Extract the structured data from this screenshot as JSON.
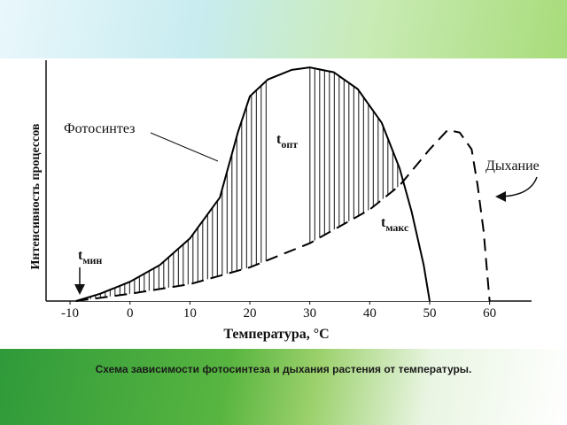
{
  "chart_data": {
    "type": "line",
    "caption": "Схема зависимости фотосинтеза и дыхания растения от температуры.",
    "x_label": "Температура, °С",
    "y_label": "Интенсивность процессов",
    "xlim": [
      -14,
      67
    ],
    "xticks": [
      -10,
      0,
      10,
      20,
      30,
      40,
      50,
      60
    ],
    "ylim": [
      0,
      100
    ],
    "series": [
      {
        "name": "Фотосинтез",
        "color": "#000000",
        "dashed": false,
        "x": [
          -9,
          -5,
          0,
          5,
          10,
          15,
          18,
          20,
          23,
          27,
          30,
          34,
          38,
          42,
          45,
          47,
          49,
          50
        ],
        "values": [
          0,
          3,
          8,
          15,
          26,
          43,
          70,
          85,
          92,
          96,
          97,
          95,
          88,
          74,
          55,
          37,
          15,
          0
        ]
      },
      {
        "name": "Дыхание",
        "color": "#000000",
        "dashed": true,
        "x": [
          -9,
          0,
          10,
          20,
          30,
          40,
          45,
          50,
          53,
          55,
          57,
          58,
          59,
          60
        ],
        "values": [
          0,
          3,
          7,
          14,
          24,
          38,
          48,
          63,
          71,
          70,
          63,
          48,
          29,
          0
        ]
      }
    ],
    "annotations": [
      {
        "text": "t",
        "sub": "мин"
      },
      {
        "text": "t",
        "sub": "опт"
      },
      {
        "text": "t",
        "sub": "макс"
      }
    ]
  }
}
